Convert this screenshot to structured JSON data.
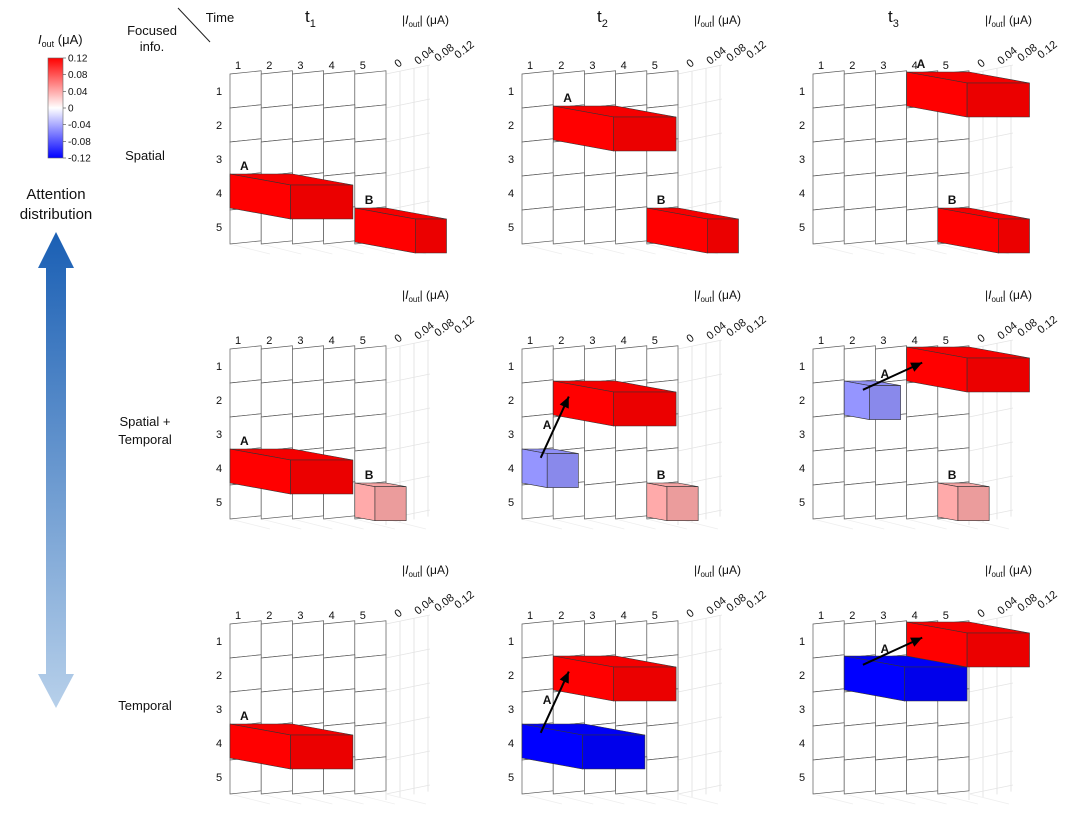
{
  "header": {
    "focused_label_line1": "Focused",
    "focused_label_line2": "info.",
    "time_label": "Time",
    "times": [
      {
        "base": "t",
        "sub": "1"
      },
      {
        "base": "t",
        "sub": "2"
      },
      {
        "base": "t",
        "sub": "3"
      }
    ]
  },
  "zaxis": {
    "label_pre": "|",
    "label_italic": "I",
    "label_sub": "out",
    "label_post": "| (μA)",
    "ticks": [
      "0",
      "0.04",
      "0.08",
      "0.12"
    ]
  },
  "colorbar": {
    "title_italic": "I",
    "title_sub": "out",
    "title_post": " (μA)",
    "ticks": [
      "0.12",
      "0.08",
      "0.04",
      "0",
      "-0.04",
      "-0.08",
      "-0.12"
    ],
    "range": [
      -0.12,
      0.12
    ],
    "colors": {
      "neg": "#0000ff",
      "zero": "#ffffff",
      "pos": "#ff0000"
    }
  },
  "side": {
    "attention_line1": "Attention",
    "attention_line2": "distribution",
    "arrow_top_color": "#1a5fb4",
    "arrow_bottom_color": "#b7d0ea"
  },
  "rows": [
    {
      "label_lines": [
        "Spatial"
      ]
    },
    {
      "label_lines": [
        "Spatial +",
        "Temporal"
      ]
    },
    {
      "label_lines": [
        "Temporal"
      ]
    }
  ],
  "grid": {
    "col_labels": [
      "1",
      "2",
      "3",
      "4",
      "5"
    ],
    "row_labels": [
      "1",
      "2",
      "3",
      "4",
      "5"
    ]
  },
  "chart_data": [
    {
      "type": "bar3d",
      "row": "Spatial",
      "time": "t1",
      "bars": [
        {
          "label": "A",
          "row": 4,
          "col_start": 1,
          "col_end": 2,
          "value": 0.12
        },
        {
          "label": "B",
          "row": 5,
          "col_start": 5,
          "col_end": 5,
          "value": 0.12
        }
      ],
      "arrow": null
    },
    {
      "type": "bar3d",
      "row": "Spatial",
      "time": "t2",
      "bars": [
        {
          "label": "A",
          "row": 2,
          "col_start": 2,
          "col_end": 3,
          "value": 0.12
        },
        {
          "label": "B",
          "row": 5,
          "col_start": 5,
          "col_end": 5,
          "value": 0.12
        }
      ],
      "arrow": null
    },
    {
      "type": "bar3d",
      "row": "Spatial",
      "time": "t3",
      "bars": [
        {
          "label": "A",
          "row": 1,
          "col_start": 4,
          "col_end": 5,
          "value": 0.12
        },
        {
          "label": "B",
          "row": 5,
          "col_start": 5,
          "col_end": 5,
          "value": 0.12
        }
      ],
      "arrow": null
    },
    {
      "type": "bar3d",
      "row": "Spatial + Temporal",
      "time": "t1",
      "bars": [
        {
          "label": "A",
          "row": 4,
          "col_start": 1,
          "col_end": 2,
          "value": 0.12
        },
        {
          "label": "B",
          "row": 5,
          "col_start": 5,
          "col_end": 5,
          "value": 0.04
        }
      ],
      "arrow": null
    },
    {
      "type": "bar3d",
      "row": "Spatial + Temporal",
      "time": "t2",
      "bars": [
        {
          "label": "",
          "row": 4,
          "col_start": 1,
          "col_end": 1,
          "value": -0.05
        },
        {
          "label": "",
          "row": 2,
          "col_start": 2,
          "col_end": 3,
          "value": 0.12
        },
        {
          "label": "B",
          "row": 5,
          "col_start": 5,
          "col_end": 5,
          "value": 0.04
        }
      ],
      "arrow": {
        "label": "A",
        "from": [
          4,
          1
        ],
        "to": [
          2,
          2
        ]
      }
    },
    {
      "type": "bar3d",
      "row": "Spatial + Temporal",
      "time": "t3",
      "bars": [
        {
          "label": "",
          "row": 2,
          "col_start": 2,
          "col_end": 2,
          "value": -0.05
        },
        {
          "label": "",
          "row": 1,
          "col_start": 4,
          "col_end": 5,
          "value": 0.12
        },
        {
          "label": "B",
          "row": 5,
          "col_start": 5,
          "col_end": 5,
          "value": 0.04
        }
      ],
      "arrow": {
        "label": "A",
        "from": [
          2,
          2
        ],
        "to": [
          1,
          4
        ]
      }
    },
    {
      "type": "bar3d",
      "row": "Temporal",
      "time": "t1",
      "bars": [
        {
          "label": "A",
          "row": 4,
          "col_start": 1,
          "col_end": 2,
          "value": 0.12
        }
      ],
      "arrow": null
    },
    {
      "type": "bar3d",
      "row": "Temporal",
      "time": "t2",
      "bars": [
        {
          "label": "",
          "row": 4,
          "col_start": 1,
          "col_end": 2,
          "value": -0.12
        },
        {
          "label": "",
          "row": 2,
          "col_start": 2,
          "col_end": 3,
          "value": 0.12
        }
      ],
      "arrow": {
        "label": "A",
        "from": [
          4,
          1
        ],
        "to": [
          2,
          2
        ]
      }
    },
    {
      "type": "bar3d",
      "row": "Temporal",
      "time": "t3",
      "bars": [
        {
          "label": "",
          "row": 2,
          "col_start": 2,
          "col_end": 3,
          "value": -0.12
        },
        {
          "label": "",
          "row": 1,
          "col_start": 4,
          "col_end": 5,
          "value": 0.12
        }
      ],
      "arrow": {
        "label": "A",
        "from": [
          2,
          2
        ],
        "to": [
          1,
          4
        ]
      }
    }
  ]
}
